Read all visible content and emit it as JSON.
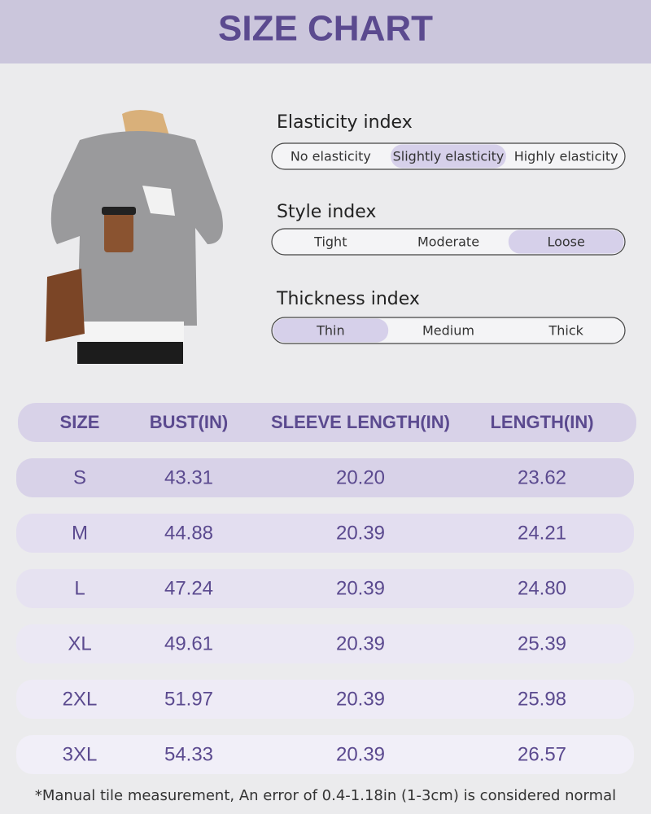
{
  "header": {
    "title": "SIZE CHART"
  },
  "indices": [
    {
      "title": "Elasticity index",
      "options": [
        "No elasticity",
        "Slightly elasticity",
        "Highly elasticity"
      ],
      "selected": 1
    },
    {
      "title": "Style index",
      "options": [
        "Tight",
        "Moderate",
        "Loose"
      ],
      "selected": 2
    },
    {
      "title": "Thickness index",
      "options": [
        "Thin",
        "Medium",
        "Thick"
      ],
      "selected": 0
    }
  ],
  "table": {
    "columns": [
      "SIZE",
      "BUST(IN)",
      "SLEEVE LENGTH(IN)",
      "LENGTH(IN)"
    ],
    "rows": [
      [
        "S",
        "43.31",
        "20.20",
        "23.62"
      ],
      [
        "M",
        "44.88",
        "20.39",
        "24.21"
      ],
      [
        "L",
        "47.24",
        "20.39",
        "24.80"
      ],
      [
        "XL",
        "49.61",
        "20.39",
        "25.39"
      ],
      [
        "2XL",
        "51.97",
        "20.39",
        "25.98"
      ],
      [
        "3XL",
        "54.33",
        "20.39",
        "26.57"
      ]
    ]
  },
  "footnote": "*Manual tile measurement, An error of 0.4-1.18in (1-3cm) is considered normal"
}
